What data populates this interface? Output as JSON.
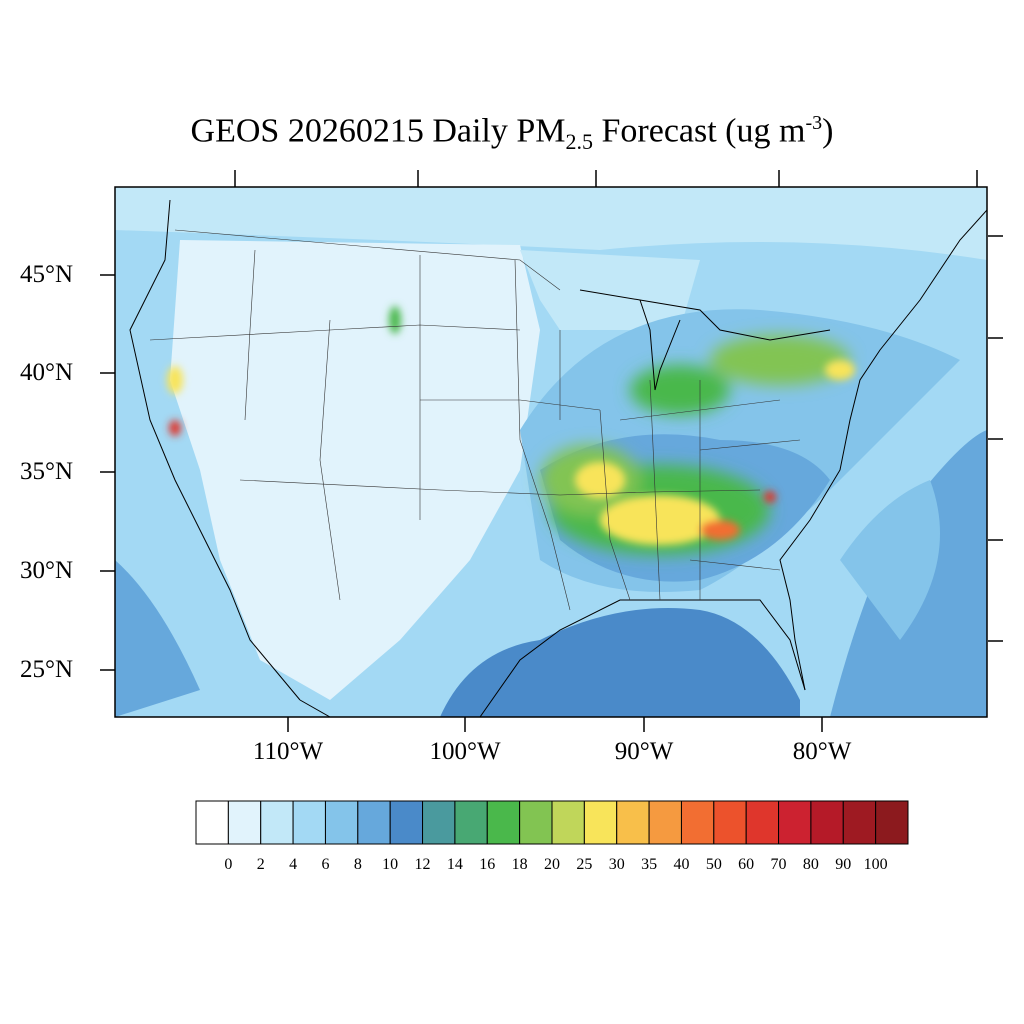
{
  "title": {
    "prefix": "GEOS 20260215 Daily PM",
    "sub": "2.5",
    "middle": " Forecast (ug m",
    "sup": "-3",
    "end": ")"
  },
  "lat_labels": [
    "45°N",
    "40°N",
    "35°N",
    "30°N",
    "25°N"
  ],
  "lon_labels": [
    "110°W",
    "100°W",
    "90°W",
    "80°W"
  ],
  "legend": {
    "ticks": [
      "0",
      "2",
      "4",
      "6",
      "8",
      "10",
      "12",
      "14",
      "16",
      "18",
      "20",
      "25",
      "30",
      "35",
      "40",
      "50",
      "60",
      "70",
      "80",
      "90",
      "100"
    ],
    "colors": [
      "#ffffff",
      "#e1f3fc",
      "#c2e8f8",
      "#a3d9f4",
      "#84c4ea",
      "#66a8dc",
      "#4a8ac9",
      "#4a9a9e",
      "#48a873",
      "#4ab84b",
      "#82c452",
      "#c0d65a",
      "#f8e45a",
      "#f8bf4a",
      "#f59a40",
      "#f26e32",
      "#ec522c",
      "#df362c",
      "#cc2230",
      "#b51a28",
      "#9e1a22",
      "#8c1a1e"
    ]
  },
  "map_colors": {
    "ocean_dark": "#4a8ac9",
    "ocean": "#66a8dc",
    "land_light": "#e1f3fc",
    "land": "#c2e8f8",
    "land_mid": "#a3d9f4",
    "hot_green": "#4ab84b",
    "hot_yellow": "#f8e45a",
    "hot_red": "#df362c"
  }
}
